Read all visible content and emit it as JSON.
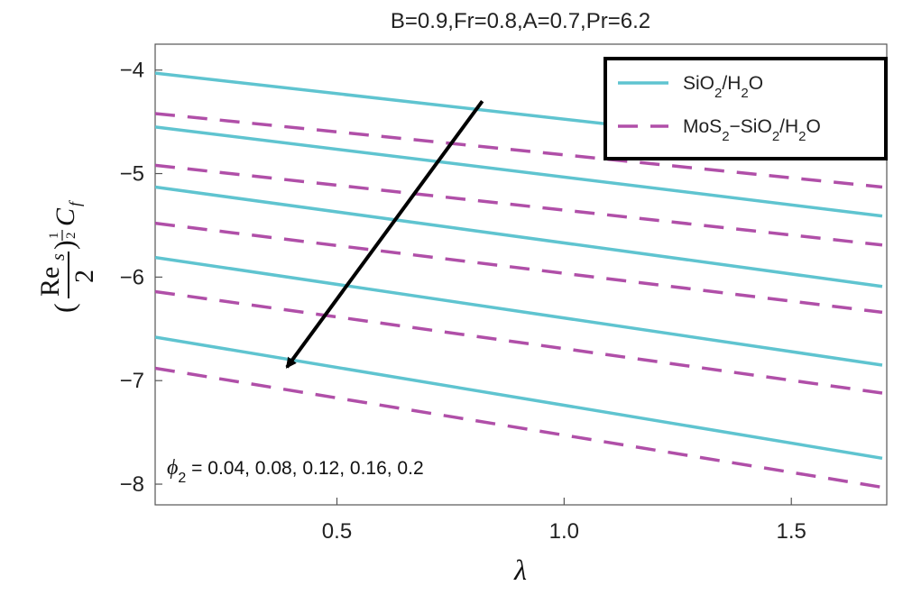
{
  "chart_data": {
    "type": "line",
    "title": "B=0.9,Fr=0.8,A=0.7,Pr=6.2",
    "xlabel": "λ",
    "ylabel": "(Re_s/2)^(1/2) C_f",
    "xlim": [
      0.1,
      1.71
    ],
    "ylim": [
      -8.2,
      -3.75
    ],
    "x_ticks": [
      0.5,
      1.0,
      1.5
    ],
    "x_tick_labels": [
      "0.5",
      "1.0",
      "1.5"
    ],
    "y_ticks": [
      -4,
      -5,
      -6,
      -7,
      -8
    ],
    "y_tick_labels": [
      "−4",
      "−5",
      "−6",
      "−7",
      "−8"
    ],
    "grid": false,
    "legend_position": "top-right",
    "legend": [
      {
        "label": "SiO2/H2O",
        "style": "solid",
        "color": "#5fc4d0"
      },
      {
        "label": "MoS2−SiO2/H2O",
        "style": "dashed",
        "color": "#b04fa8"
      }
    ],
    "annotation": "ϕ2 = 0.04, 0.08, 0.12, 0.16, 0.2",
    "arrow": {
      "from": [
        0.82,
        -4.3
      ],
      "to": [
        0.39,
        -6.87
      ]
    },
    "series": [
      {
        "group": "SiO2/H2O",
        "phi2": 0.04,
        "x": [
          0.1,
          1.7
        ],
        "y": [
          -4.03,
          -4.82
        ]
      },
      {
        "group": "SiO2/H2O",
        "phi2": 0.08,
        "x": [
          0.1,
          1.7
        ],
        "y": [
          -4.55,
          -5.41
        ]
      },
      {
        "group": "SiO2/H2O",
        "phi2": 0.12,
        "x": [
          0.1,
          1.7
        ],
        "y": [
          -5.13,
          -6.09
        ]
      },
      {
        "group": "SiO2/H2O",
        "phi2": 0.16,
        "x": [
          0.1,
          1.7
        ],
        "y": [
          -5.81,
          -6.85
        ]
      },
      {
        "group": "SiO2/H2O",
        "phi2": 0.2,
        "x": [
          0.1,
          1.7
        ],
        "y": [
          -6.58,
          -7.75
        ]
      },
      {
        "group": "MoS2−SiO2/H2O",
        "phi2": 0.04,
        "x": [
          0.1,
          1.7
        ],
        "y": [
          -4.42,
          -5.13
        ]
      },
      {
        "group": "MoS2−SiO2/H2O",
        "phi2": 0.08,
        "x": [
          0.1,
          1.7
        ],
        "y": [
          -4.92,
          -5.69
        ]
      },
      {
        "group": "MoS2−SiO2/H2O",
        "phi2": 0.12,
        "x": [
          0.1,
          1.7
        ],
        "y": [
          -5.48,
          -6.34
        ]
      },
      {
        "group": "MoS2−SiO2/H2O",
        "phi2": 0.16,
        "x": [
          0.1,
          1.7
        ],
        "y": [
          -6.14,
          -7.12
        ]
      },
      {
        "group": "MoS2−SiO2/H2O",
        "phi2": 0.2,
        "x": [
          0.1,
          1.7
        ],
        "y": [
          -6.88,
          -8.03
        ]
      }
    ]
  }
}
